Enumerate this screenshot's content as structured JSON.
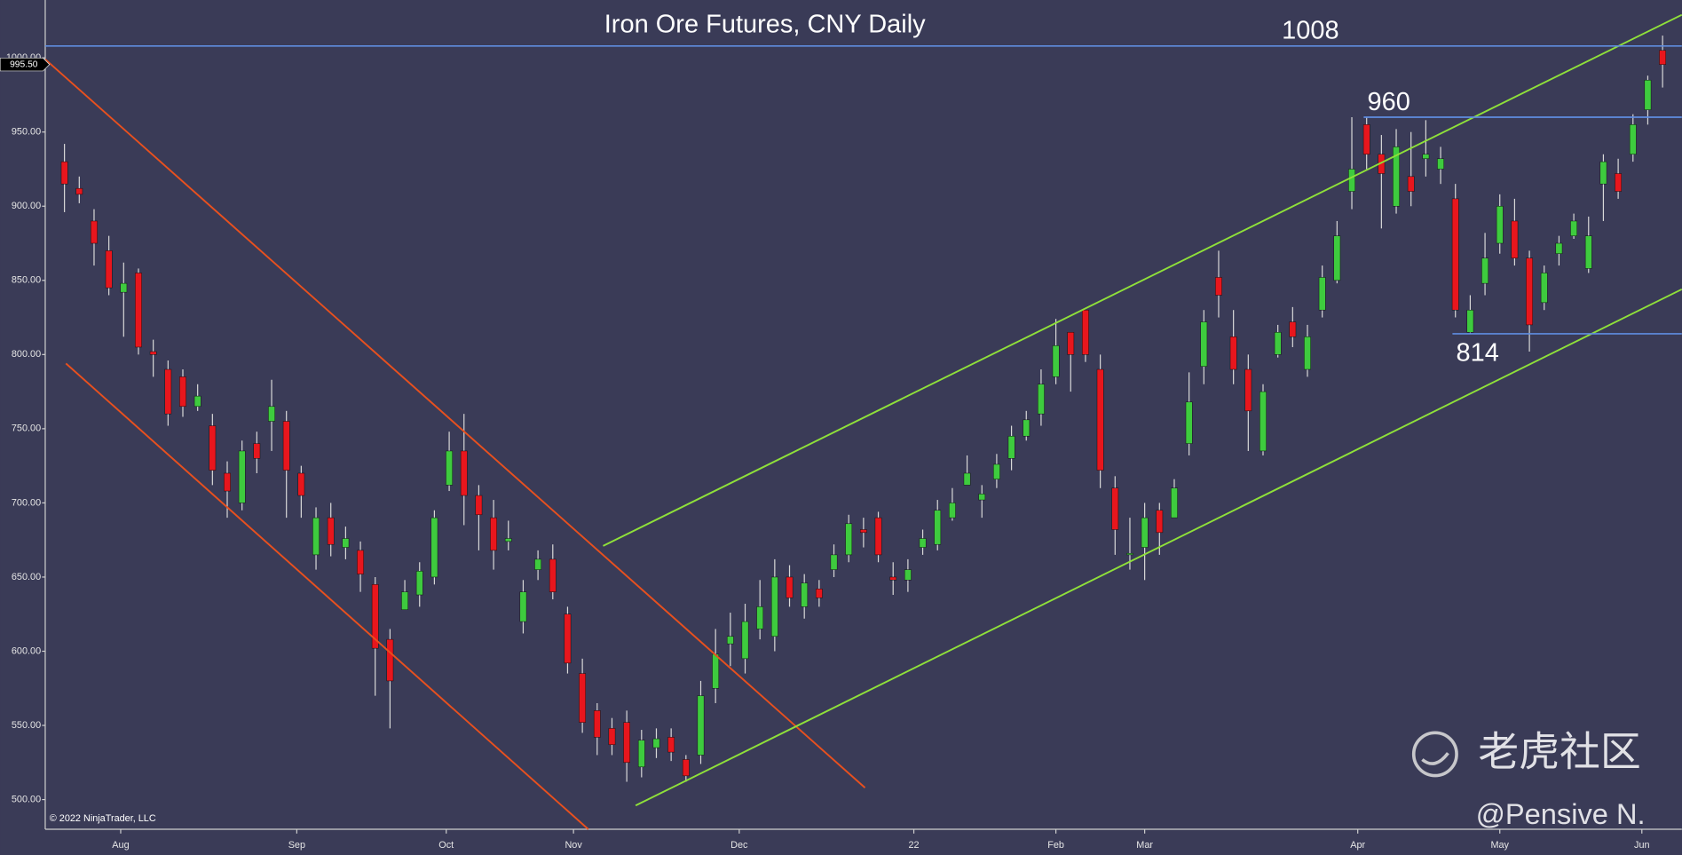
{
  "chart_data": {
    "type": "candlestick",
    "title": "Iron Ore Futures, CNY Daily",
    "copyright": "© 2022 NinjaTrader, LLC",
    "watermark": [
      "老虎社区",
      "@Pensive N."
    ],
    "up_color": "#3ecb3e",
    "down_color": "#e8161d",
    "wick_color": "#d8d8d8",
    "xlim": [
      -1.3,
      109.3
    ],
    "ylim": [
      480,
      1039
    ],
    "xticks": [
      {
        "value": 3.8,
        "label": "Aug"
      },
      {
        "value": 15.7,
        "label": "Sep"
      },
      {
        "value": 25.8,
        "label": "Oct"
      },
      {
        "value": 34.4,
        "label": "Nov"
      },
      {
        "value": 45.6,
        "label": "Dec"
      },
      {
        "value": 57.4,
        "label": "22"
      },
      {
        "value": 67.0,
        "label": "Feb"
      },
      {
        "value": 73.0,
        "label": "Mar"
      },
      {
        "value": 87.4,
        "label": "Apr"
      },
      {
        "value": 97.0,
        "label": "May"
      },
      {
        "value": 106.6,
        "label": "Jun"
      }
    ],
    "yticks": [
      {
        "value": 500,
        "label": "500.00"
      },
      {
        "value": 550,
        "label": "550.00"
      },
      {
        "value": 600,
        "label": "600.00"
      },
      {
        "value": 650,
        "label": "650.00"
      },
      {
        "value": 700,
        "label": "700.00"
      },
      {
        "value": 750,
        "label": "750.00"
      },
      {
        "value": 800,
        "label": "800.00"
      },
      {
        "value": 850,
        "label": "850.00"
      },
      {
        "value": 900,
        "label": "900.00"
      },
      {
        "value": 950,
        "label": "950.00"
      },
      {
        "value": 1000,
        "label": "1000.00"
      }
    ],
    "last_price": {
      "value": 995.5,
      "label": "995.50"
    },
    "ohlc": {
      "open": [
        930,
        912,
        890,
        870,
        842,
        855,
        802,
        790,
        785,
        765,
        752,
        720,
        700,
        740,
        755,
        755,
        720,
        665,
        690,
        670,
        668,
        645,
        608,
        628,
        638,
        650,
        712,
        735,
        705,
        690,
        674,
        620,
        655,
        662,
        625,
        585,
        560,
        548,
        552,
        522,
        535,
        542,
        527,
        530,
        575,
        605,
        595,
        615,
        610,
        650,
        630,
        642,
        655,
        665,
        682,
        690,
        650,
        648,
        670,
        672,
        690,
        712,
        702,
        716,
        730,
        745,
        760,
        785,
        815,
        830,
        790,
        710,
        665,
        670,
        695,
        690,
        740,
        792,
        852,
        812,
        790,
        735,
        800,
        822,
        790,
        830,
        850,
        910,
        955,
        935,
        900,
        920,
        932,
        925,
        905,
        815,
        848,
        875,
        890,
        865,
        835,
        868,
        880,
        858,
        915,
        922,
        935,
        965,
        1005
      ],
      "high": [
        942,
        920,
        898,
        880,
        862,
        858,
        810,
        796,
        790,
        780,
        760,
        728,
        742,
        748,
        783,
        762,
        725,
        697,
        700,
        684,
        674,
        650,
        615,
        648,
        660,
        695,
        748,
        760,
        712,
        702,
        688,
        648,
        668,
        672,
        630,
        595,
        565,
        555,
        560,
        547,
        548,
        548,
        530,
        580,
        615,
        626,
        632,
        648,
        662,
        658,
        652,
        648,
        672,
        692,
        690,
        694,
        660,
        662,
        682,
        702,
        710,
        732,
        712,
        733,
        752,
        762,
        790,
        824,
        812,
        830,
        800,
        718,
        690,
        700,
        700,
        716,
        788,
        830,
        870,
        830,
        800,
        780,
        820,
        832,
        820,
        860,
        890,
        960,
        960,
        948,
        952,
        950,
        958,
        940,
        915,
        840,
        882,
        908,
        905,
        870,
        860,
        880,
        895,
        893,
        935,
        932,
        962,
        988,
        1015
      ],
      "low": [
        896,
        902,
        860,
        840,
        812,
        800,
        785,
        752,
        758,
        762,
        712,
        690,
        695,
        720,
        735,
        690,
        690,
        655,
        664,
        662,
        640,
        570,
        548,
        632,
        630,
        645,
        708,
        685,
        668,
        655,
        668,
        612,
        648,
        635,
        585,
        545,
        530,
        530,
        512,
        515,
        528,
        526,
        512,
        524,
        565,
        590,
        585,
        608,
        600,
        630,
        622,
        630,
        650,
        660,
        670,
        660,
        638,
        640,
        665,
        668,
        688,
        712,
        690,
        710,
        722,
        742,
        752,
        780,
        775,
        795,
        710,
        665,
        655,
        648,
        665,
        690,
        732,
        780,
        825,
        780,
        735,
        732,
        798,
        805,
        785,
        825,
        848,
        898,
        925,
        885,
        895,
        900,
        920,
        915,
        825,
        814,
        840,
        868,
        860,
        802,
        830,
        860,
        878,
        855,
        890,
        905,
        930,
        955,
        980
      ],
      "close": [
        915,
        908,
        875,
        845,
        848,
        805,
        800,
        760,
        765,
        772,
        722,
        708,
        735,
        730,
        765,
        722,
        705,
        690,
        672,
        676,
        652,
        602,
        580,
        640,
        654,
        690,
        735,
        705,
        692,
        668,
        676,
        640,
        662,
        640,
        592,
        552,
        542,
        537,
        525,
        540,
        541,
        532,
        516,
        570,
        598,
        610,
        620,
        630,
        650,
        636,
        646,
        636,
        665,
        686,
        680,
        665,
        648,
        655,
        676,
        695,
        700,
        720,
        706,
        726,
        745,
        756,
        780,
        806,
        800,
        800,
        722,
        682,
        666,
        690,
        680,
        710,
        768,
        822,
        840,
        790,
        762,
        775,
        815,
        812,
        812,
        852,
        880,
        925,
        935,
        922,
        940,
        910,
        935,
        932,
        830,
        830,
        865,
        900,
        865,
        820,
        855,
        875,
        890,
        880,
        930,
        910,
        955,
        985,
        995.5
      ]
    },
    "trendlines": [
      {
        "color": "#e8501e",
        "points": [
          [
            -1.3,
            999
          ],
          [
            54.1,
            508
          ]
        ]
      },
      {
        "color": "#e8501e",
        "points": [
          [
            0.1,
            794
          ],
          [
            35.4,
            480
          ]
        ]
      },
      {
        "color": "#8fe03a",
        "points": [
          [
            36.4,
            671
          ],
          [
            109.3,
            1029
          ]
        ]
      },
      {
        "color": "#8fe03a",
        "points": [
          [
            38.6,
            496
          ],
          [
            109.3,
            844
          ]
        ]
      }
    ],
    "levels": [
      {
        "value": 1008,
        "label": "1008",
        "from": -1.3,
        "label_at": 84.2
      },
      {
        "value": 960,
        "label": "960",
        "from": 87.8,
        "label_at": 89.5
      },
      {
        "value": 814,
        "label": "814",
        "from": 93.8,
        "label_at": 95.5
      }
    ],
    "level_color": "#5f8de0"
  }
}
